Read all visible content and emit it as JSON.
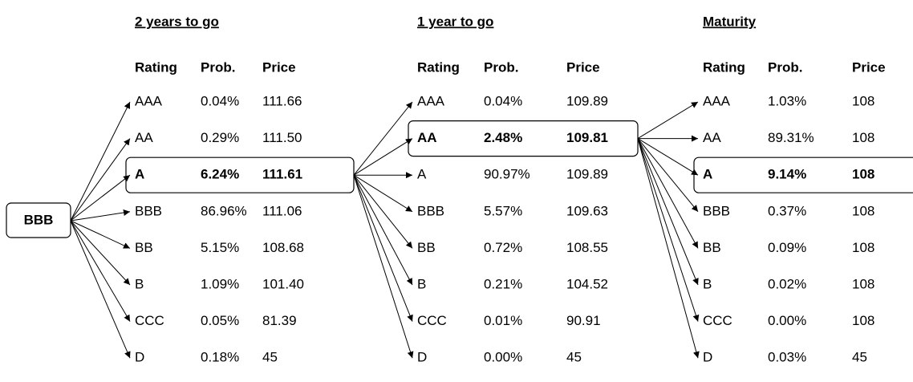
{
  "root": {
    "label": "BBB"
  },
  "stages": [
    {
      "title": "2 years to go",
      "headers": [
        "Rating",
        "Prob.",
        "Price"
      ],
      "highlight": 2,
      "rows": [
        [
          "AAA",
          "0.04%",
          "111.66"
        ],
        [
          "AA",
          "0.29%",
          "111.50"
        ],
        [
          "A",
          "6.24%",
          "111.61"
        ],
        [
          "BBB",
          "86.96%",
          "111.06"
        ],
        [
          "BB",
          "5.15%",
          "108.68"
        ],
        [
          "B",
          "1.09%",
          "101.40"
        ],
        [
          "CCC",
          "0.05%",
          "81.39"
        ],
        [
          "D",
          "0.18%",
          "45"
        ]
      ]
    },
    {
      "title": "1 year to go",
      "headers": [
        "Rating",
        "Prob.",
        "Price"
      ],
      "highlight": 1,
      "rows": [
        [
          "AAA",
          "0.04%",
          "109.89"
        ],
        [
          "AA",
          "2.48%",
          "109.81"
        ],
        [
          "A",
          "90.97%",
          "109.89"
        ],
        [
          "BBB",
          "5.57%",
          "109.63"
        ],
        [
          "BB",
          "0.72%",
          "108.55"
        ],
        [
          "B",
          "0.21%",
          "104.52"
        ],
        [
          "CCC",
          "0.01%",
          "90.91"
        ],
        [
          "D",
          "0.00%",
          "45"
        ]
      ]
    },
    {
      "title": "Maturity",
      "headers": [
        "Rating",
        "Prob.",
        "Price"
      ],
      "highlight": 2,
      "rows": [
        [
          "AAA",
          "1.03%",
          "108"
        ],
        [
          "AA",
          "89.31%",
          "108"
        ],
        [
          "A",
          "9.14%",
          "108"
        ],
        [
          "BBB",
          "0.37%",
          "108"
        ],
        [
          "BB",
          "0.09%",
          "108"
        ],
        [
          "B",
          "0.02%",
          "108"
        ],
        [
          "CCC",
          "0.00%",
          "108"
        ],
        [
          "D",
          "0.03%",
          "45"
        ]
      ]
    }
  ]
}
